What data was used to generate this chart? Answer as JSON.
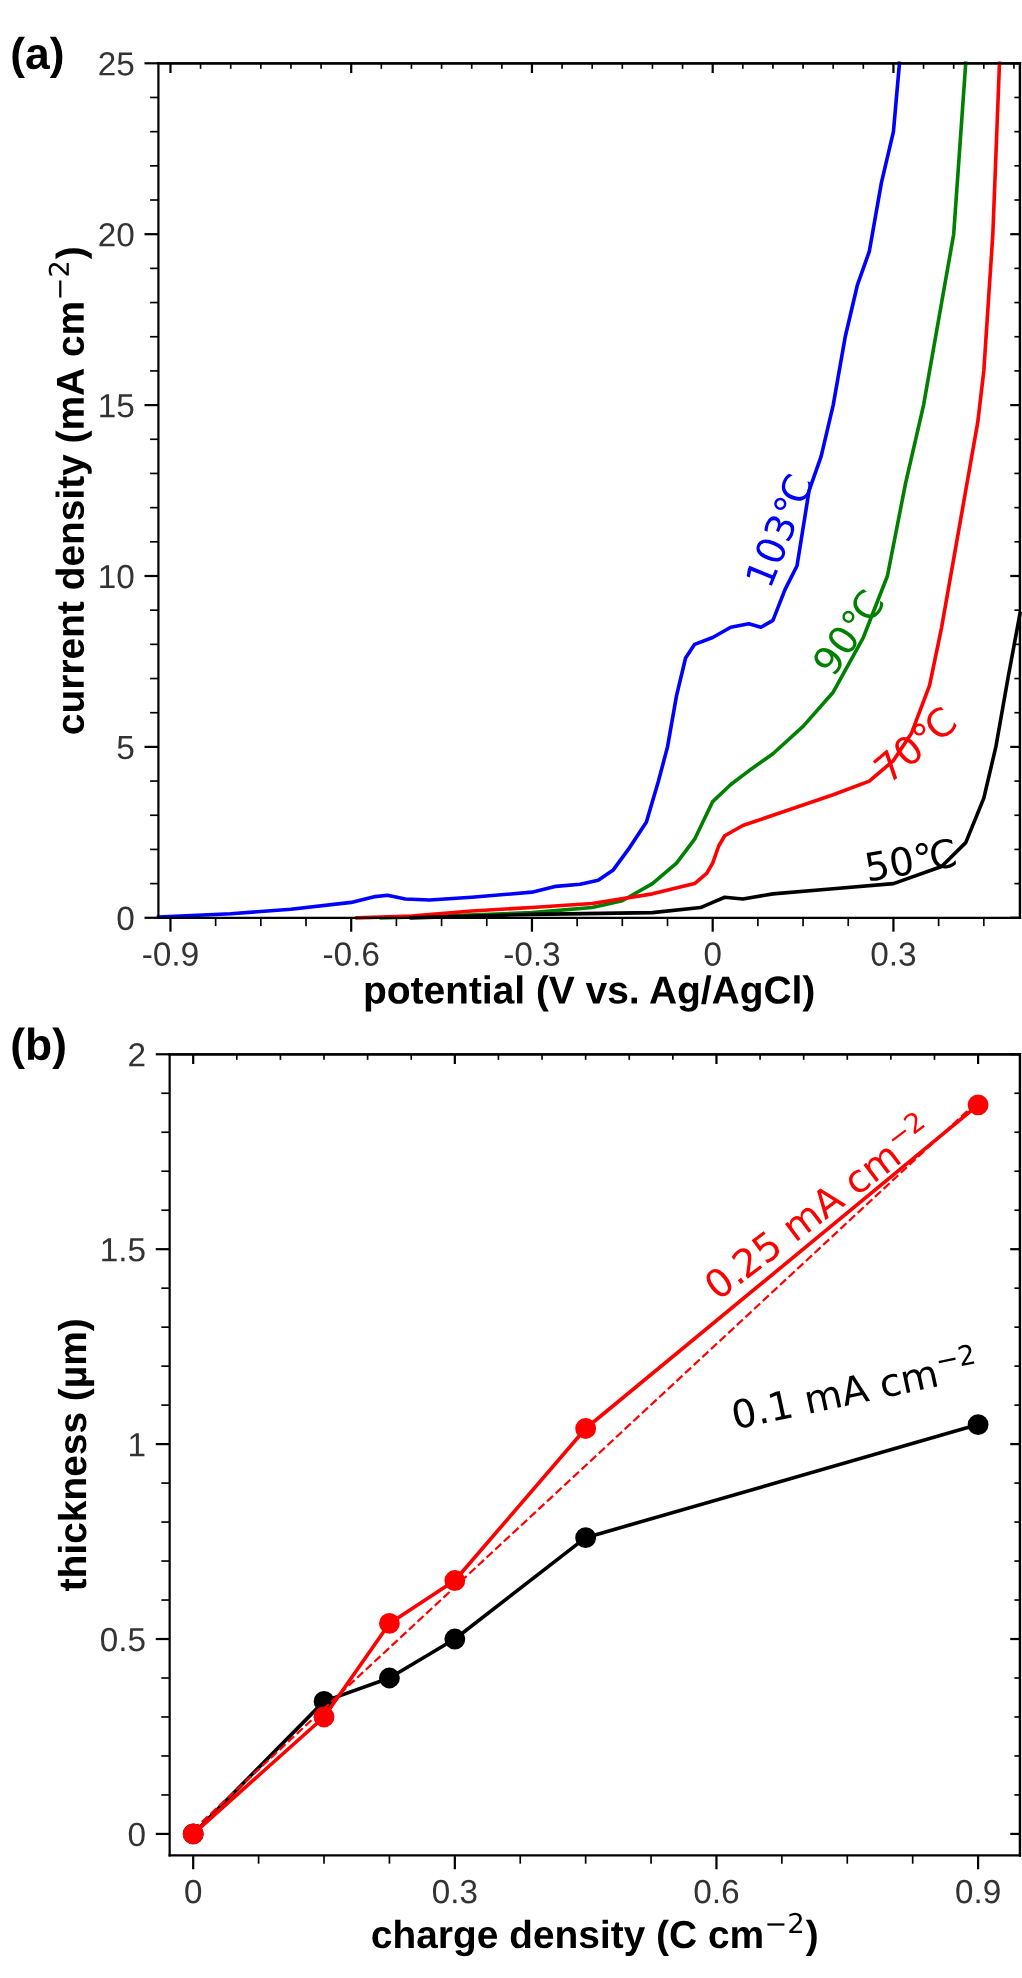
{
  "chart_data": [
    {
      "type": "line",
      "xlabel": "potential (V vs. Ag/AgCl)",
      "ylabel": "current density (mA cm$^{−2}$)",
      "xlim": [
        -0.92,
        0.51
      ],
      "ylim": [
        0,
        25
      ],
      "xticks": [
        -0.9,
        -0.6,
        -0.3,
        0,
        0.3
      ],
      "yticks": [
        0,
        5,
        10,
        15,
        20,
        25
      ],
      "grid": false,
      "legend": false,
      "marker": "none",
      "line_style": "solid",
      "series": [
        {
          "color": "#0000ff",
          "x": [
            -0.92,
            -0.8,
            -0.7,
            -0.6,
            -0.56,
            -0.54,
            -0.51,
            -0.47,
            -0.4,
            -0.3,
            -0.26,
            -0.22,
            -0.19,
            -0.165,
            -0.14,
            -0.11,
            -0.09,
            -0.075,
            -0.06,
            -0.045,
            -0.03,
            0.0,
            0.03,
            0.06,
            0.08,
            0.1,
            0.12,
            0.14,
            0.16,
            0.18,
            0.2,
            0.22,
            0.24,
            0.26,
            0.28,
            0.3,
            0.31
          ],
          "values": [
            0.02,
            0.12,
            0.25,
            0.45,
            0.62,
            0.66,
            0.55,
            0.52,
            0.6,
            0.75,
            0.92,
            0.98,
            1.1,
            1.4,
            2.0,
            2.8,
            4.0,
            5.0,
            6.5,
            7.6,
            8.0,
            8.2,
            8.5,
            8.6,
            8.5,
            8.7,
            9.6,
            10.3,
            12.5,
            13.5,
            15,
            17,
            18.5,
            19.5,
            21.5,
            23,
            25
          ]
        },
        {
          "color": "#008000",
          "x": [
            -0.55,
            -0.45,
            -0.3,
            -0.2,
            -0.15,
            -0.1,
            -0.06,
            -0.03,
            0.0,
            0.03,
            0.06,
            0.1,
            0.15,
            0.2,
            0.25,
            0.29,
            0.32,
            0.35,
            0.38,
            0.4,
            0.41,
            0.42
          ],
          "values": [
            0.0,
            0.05,
            0.15,
            0.3,
            0.5,
            1.0,
            1.6,
            2.3,
            3.4,
            3.9,
            4.3,
            4.8,
            5.6,
            6.6,
            8.2,
            10,
            12.7,
            15,
            18,
            20,
            22.5,
            25
          ]
        },
        {
          "color": "#ff0000",
          "x": [
            -0.59,
            -0.5,
            -0.4,
            -0.3,
            -0.2,
            -0.1,
            -0.03,
            -0.01,
            0.0,
            0.01,
            0.02,
            0.05,
            0.1,
            0.2,
            0.26,
            0.3,
            0.33,
            0.36,
            0.38,
            0.4,
            0.42,
            0.44,
            0.45,
            0.465,
            0.476
          ],
          "values": [
            0.0,
            0.05,
            0.2,
            0.3,
            0.42,
            0.7,
            1.0,
            1.3,
            1.6,
            2.1,
            2.4,
            2.7,
            3.0,
            3.6,
            4.0,
            4.6,
            5.4,
            6.8,
            8.5,
            10.5,
            12.5,
            14.5,
            16,
            20,
            25
          ]
        },
        {
          "color": "#000000",
          "x": [
            -0.5,
            -0.3,
            -0.1,
            -0.02,
            0.0,
            0.02,
            0.05,
            0.1,
            0.2,
            0.3,
            0.38,
            0.42,
            0.45,
            0.47,
            0.49,
            0.51
          ],
          "values": [
            0.0,
            0.1,
            0.15,
            0.3,
            0.45,
            0.6,
            0.55,
            0.7,
            0.85,
            1.0,
            1.5,
            2.2,
            3.5,
            5,
            7,
            8.9
          ]
        }
      ],
      "annotations": [
        "(a)",
        "103℃",
        "90℃",
        "70℃",
        "50℃"
      ]
    },
    {
      "type": "line",
      "xlabel": "charge density (C cm$^{−2}$)",
      "ylabel": "thickness (µm)",
      "xlim": [
        -0.027,
        0.948
      ],
      "ylim": [
        -0.055,
        2
      ],
      "xticks": [
        0,
        0.3,
        0.6,
        0.9
      ],
      "yticks": [
        0,
        0.5,
        1,
        1.5,
        2
      ],
      "grid": false,
      "legend": false,
      "marker": "circle",
      "line_style": "solid",
      "series": [
        {
          "color": "#000000",
          "x": [
            0,
            0.15,
            0.225,
            0.3,
            0.45,
            0.9
          ],
          "values": [
            0,
            0.34,
            0.4,
            0.5,
            0.76,
            1.05
          ]
        },
        {
          "color": "#ff0000",
          "x": [
            0,
            0.15,
            0.225,
            0.3,
            0.45,
            0.9
          ],
          "values": [
            0,
            0.3,
            0.54,
            0.65,
            1.04,
            1.87
          ]
        },
        {
          "color": "#ff0000",
          "marker": "none",
          "line_style": "dashed",
          "x": [
            0,
            0.9
          ],
          "values": [
            0.01,
            1.88
          ]
        }
      ],
      "annotations": [
        "(b)",
        "0.25 mA cm$^{−2}$",
        "0.1 mA cm$^{−2}$"
      ]
    }
  ]
}
